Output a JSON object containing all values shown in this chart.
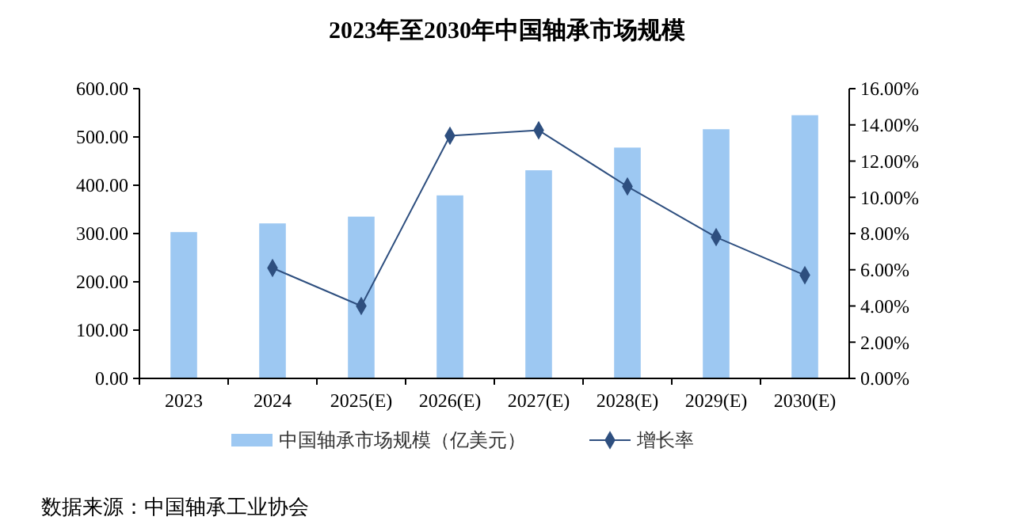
{
  "chart_data": {
    "type": "bar",
    "title": "2023年至2030年中国轴承市场规模",
    "categories": [
      "2023",
      "2024",
      "2025(E)",
      "2026(E)",
      "2027(E)",
      "2028(E)",
      "2029(E)",
      "2030(E)"
    ],
    "series": [
      {
        "name": "中国轴承市场规模（亿美元）",
        "color": "#9dc8f2",
        "values": [
          303,
          321,
          335,
          379,
          431,
          478,
          516,
          545
        ]
      },
      {
        "name": "增长率",
        "type": "line",
        "axis": "y2",
        "color": "#2e4f7f",
        "marker": "diamond",
        "values": [
          null,
          6.1,
          4.0,
          13.4,
          13.7,
          10.6,
          7.8,
          5.7
        ]
      }
    ],
    "ylim": [
      0,
      600
    ],
    "yticks": [
      {
        "value": 0,
        "label": "0.00"
      },
      {
        "value": 100,
        "label": "100.00"
      },
      {
        "value": 200,
        "label": "200.00"
      },
      {
        "value": 300,
        "label": "300.00"
      },
      {
        "value": 400,
        "label": "400.00"
      },
      {
        "value": 500,
        "label": "500.00"
      },
      {
        "value": 600,
        "label": "600.00"
      }
    ],
    "y2lim": [
      0,
      16
    ],
    "y2ticks": [
      {
        "value": 0,
        "label": "0.00%"
      },
      {
        "value": 2,
        "label": "2.00%"
      },
      {
        "value": 4,
        "label": "4.00%"
      },
      {
        "value": 6,
        "label": "6.00%"
      },
      {
        "value": 8,
        "label": "8.00%"
      },
      {
        "value": 10,
        "label": "10.00%"
      },
      {
        "value": 12,
        "label": "12.00%"
      },
      {
        "value": 14,
        "label": "14.00%"
      },
      {
        "value": 16,
        "label": "16.00%"
      }
    ],
    "legend": "bottom",
    "grid": false,
    "annotations": [
      "数据来源：中国轴承工业协会"
    ]
  }
}
